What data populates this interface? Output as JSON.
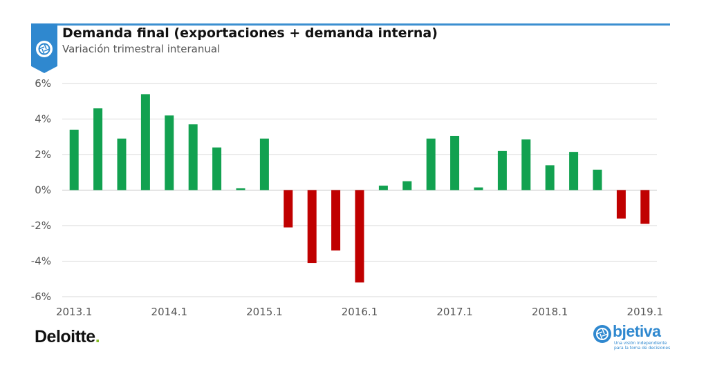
{
  "header": {
    "title": "Demanda final (exportaciones + demanda interna)",
    "subtitle": "Variación trimestral interanual",
    "icon": "aperture-icon",
    "accent_color": "#2f88cf"
  },
  "footer": {
    "left_logo_text": "Deloitte",
    "left_logo_dot": ".",
    "right_logo_text": "bjetiva",
    "right_logo_tagline_1": "Una visión independiente",
    "right_logo_tagline_2": "para la toma de decisiones"
  },
  "chart_data": {
    "type": "bar",
    "title": "Demanda final (exportaciones + demanda interna)",
    "subtitle": "Variación trimestral interanual",
    "xlabel": "",
    "ylabel": "",
    "ylim": [
      -6,
      6
    ],
    "yticks": [
      6,
      4,
      2,
      0,
      -2,
      -4,
      -6
    ],
    "ytick_labels": [
      "6%",
      "4%",
      "2%",
      "0%",
      "-2%",
      "-4%",
      "-6%"
    ],
    "grid": true,
    "positive_color": "#12a150",
    "negative_color": "#c00000",
    "categories": [
      "2013.1",
      "2013.2",
      "2013.3",
      "2013.4",
      "2014.1",
      "2014.2",
      "2014.3",
      "2014.4",
      "2015.1",
      "2015.2",
      "2015.3",
      "2015.4",
      "2016.1",
      "2016.2",
      "2016.3",
      "2016.4",
      "2017.1",
      "2017.2",
      "2017.3",
      "2017.4",
      "2018.1",
      "2018.2",
      "2018.3",
      "2018.4",
      "2019.1"
    ],
    "tick_labels": [
      {
        "index": 0,
        "label": "2013.1"
      },
      {
        "index": 4,
        "label": "2014.1"
      },
      {
        "index": 8,
        "label": "2015.1"
      },
      {
        "index": 12,
        "label": "2016.1"
      },
      {
        "index": 16,
        "label": "2017.1"
      },
      {
        "index": 20,
        "label": "2018.1"
      },
      {
        "index": 24,
        "label": "2019.1"
      }
    ],
    "values": [
      3.4,
      4.6,
      2.9,
      5.4,
      4.2,
      3.7,
      2.4,
      0.1,
      2.9,
      -2.1,
      -4.1,
      -3.4,
      -5.2,
      0.25,
      0.5,
      2.9,
      3.05,
      0.15,
      2.2,
      2.85,
      1.4,
      2.15,
      1.15,
      -1.6,
      -1.9
    ]
  }
}
